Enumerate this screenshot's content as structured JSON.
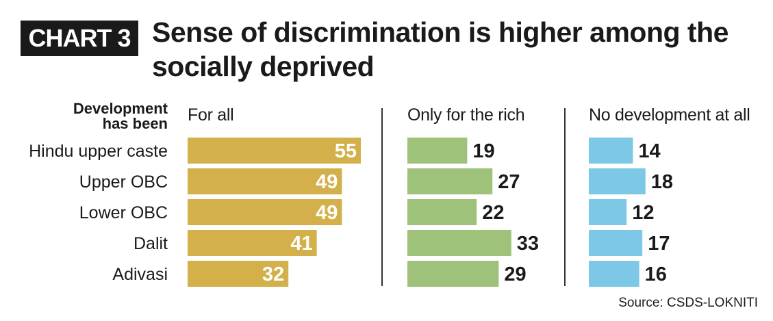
{
  "badge": "CHART 3",
  "title": "Sense of discrimination is higher among the socially deprived",
  "source": "Source: CSDS-LOKNITI",
  "chart_data": {
    "type": "bar",
    "orientation": "horizontal",
    "legend_title": [
      "Development",
      "has been"
    ],
    "categories": [
      "Hindu upper caste",
      "Upper OBC",
      "Lower OBC",
      "Dalit",
      "Adivasi"
    ],
    "series": [
      {
        "name": "For all",
        "values": [
          55,
          49,
          49,
          41,
          32
        ],
        "color": "#d3b04a"
      },
      {
        "name": "Only for the rich",
        "values": [
          19,
          27,
          22,
          33,
          29
        ],
        "color": "#9ec27a"
      },
      {
        "name": "No development at all",
        "values": [
          14,
          18,
          12,
          17,
          16
        ],
        "color": "#7cc8e6"
      }
    ]
  }
}
